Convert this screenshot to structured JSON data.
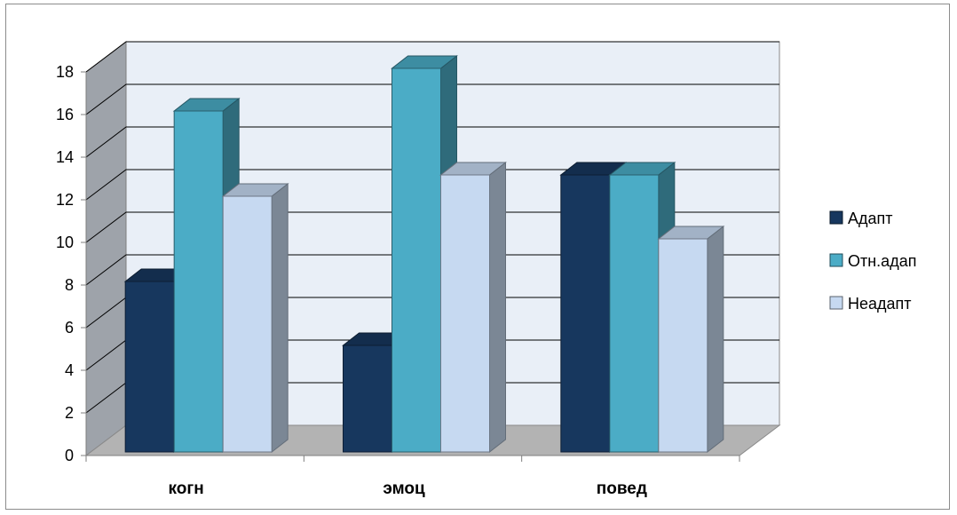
{
  "chart_data": {
    "type": "bar",
    "categories": [
      "когн",
      "эмоц",
      "повед"
    ],
    "series": [
      {
        "name": "Адапт",
        "values": [
          8,
          5,
          13
        ],
        "color": "#17375e"
      },
      {
        "name": "Отн.адап",
        "values": [
          16,
          18,
          13
        ],
        "color": "#4bacc6"
      },
      {
        "name": "Неадапт",
        "values": [
          12,
          13,
          10
        ],
        "color": "#c6d9f1"
      }
    ],
    "yticks": [
      "0",
      "2",
      "4",
      "6",
      "8",
      "10",
      "12",
      "14",
      "16",
      "18"
    ],
    "ylim": [
      0,
      18
    ],
    "grid": true,
    "legend_position": "right",
    "colors": {
      "wall": "#e9eff7",
      "side_wall": "#9ea3aa",
      "floor": "#b3b3b3",
      "gridline": "#000000"
    }
  }
}
